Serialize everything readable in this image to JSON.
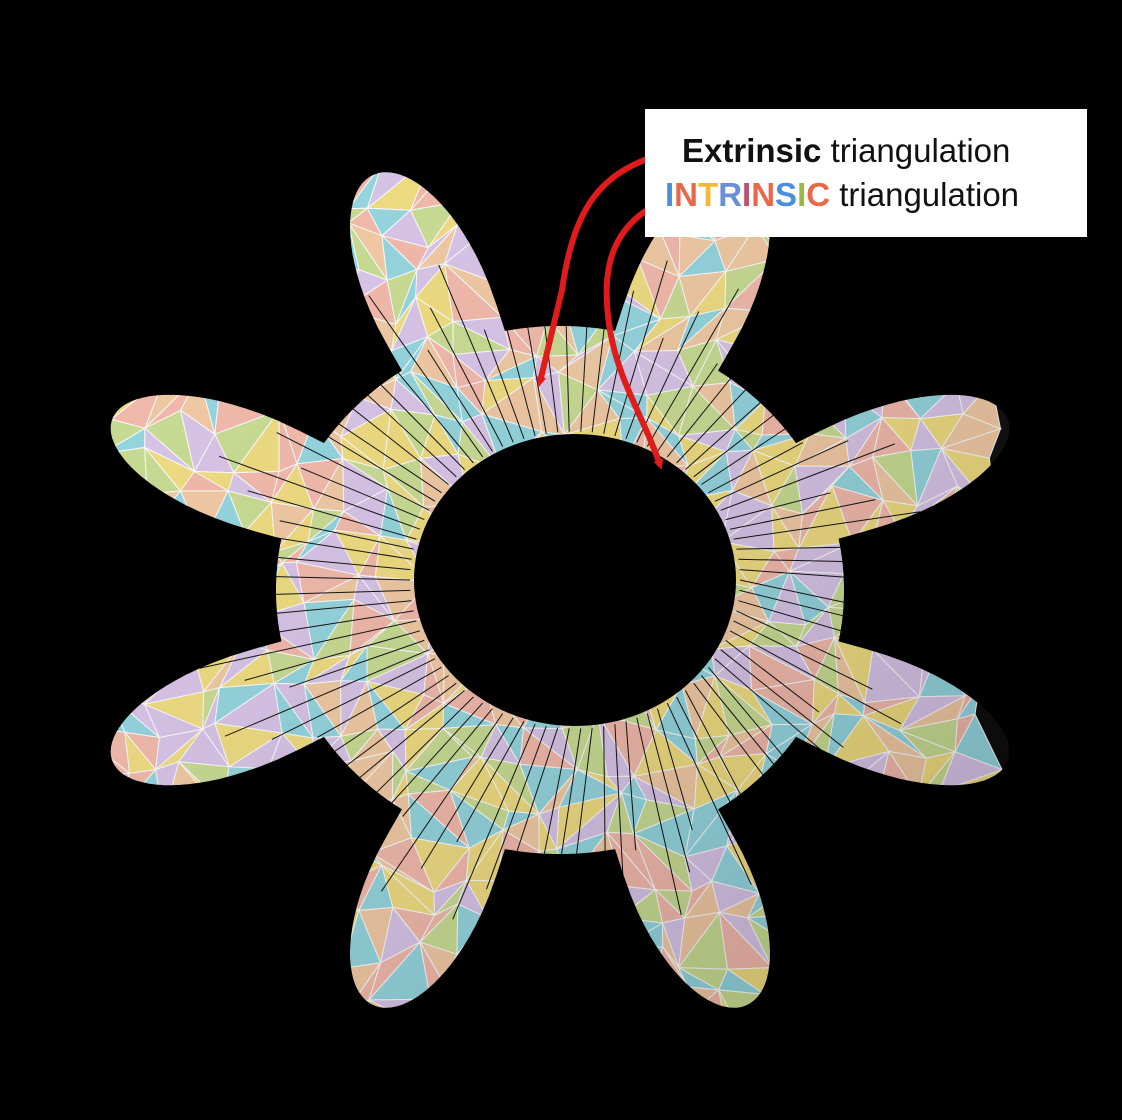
{
  "legend": {
    "extrinsic_bold": "Extrinsic",
    "extrinsic_rest": " triangulation",
    "intrinsic_word": "INTRINSIC",
    "intrinsic_rest": " triangulation",
    "intrinsic_letter_colors": [
      "#4a8fdc",
      "#e8694a",
      "#f2b83a",
      "#6a8fd8",
      "#c0506e",
      "#e8694a",
      "#4a8fdc",
      "#9ab84a",
      "#e86a4a"
    ]
  },
  "palette": {
    "background": "#000000",
    "arrow": "#e01b1b",
    "extrinsic_edge": "#000000",
    "intrinsic_edge": "#ffffff",
    "face_colors": [
      "#f2dd7a",
      "#f5b7a8",
      "#8fd6e0",
      "#d9c3ea",
      "#c8dd8e",
      "#f4c9a0"
    ]
  },
  "model": {
    "object": "gear",
    "teeth": 8
  }
}
